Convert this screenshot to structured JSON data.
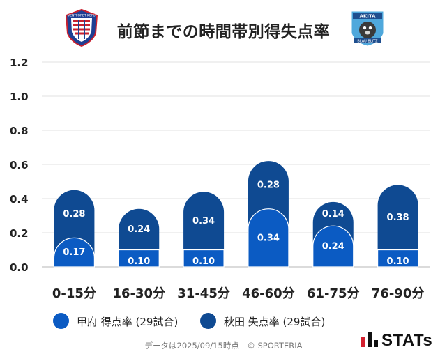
{
  "title": "前節までの時間帯別得失点率",
  "crest_left_text": "VENTFORET KOFU",
  "crest_right_top": "AKITA",
  "crest_right_bottom": "BLAU BLITZ",
  "footer": "データは2025/09/15時点　© SPORTERIA",
  "stats_label": "STATs",
  "colors": {
    "kofu": "#0b5bc3",
    "akita": "#0f4a92",
    "grid": "#e1e1e1",
    "axis": "#cfcfcf"
  },
  "chart_data": {
    "type": "bar",
    "stacked": true,
    "title": "前節までの時間帯別得失点率",
    "categories": [
      "0-15分",
      "16-30分",
      "31-45分",
      "46-60分",
      "61-75分",
      "76-90分"
    ],
    "series": [
      {
        "name": "甲府 得点率 (29試合)",
        "values": [
          0.17,
          0.1,
          0.1,
          0.34,
          0.24,
          0.1
        ],
        "color": "#0b5bc3"
      },
      {
        "name": "秋田 失点率 (29試合)",
        "values": [
          0.28,
          0.24,
          0.34,
          0.28,
          0.14,
          0.38
        ],
        "color": "#0f4a92"
      }
    ],
    "y_ticks": [
      "0.0",
      "0.2",
      "0.4",
      "0.6",
      "0.8",
      "1.0",
      "1.2"
    ],
    "ylim": [
      0,
      1.2
    ],
    "grid": true,
    "legend_position": "bottom",
    "xlabel": "",
    "ylabel": ""
  }
}
